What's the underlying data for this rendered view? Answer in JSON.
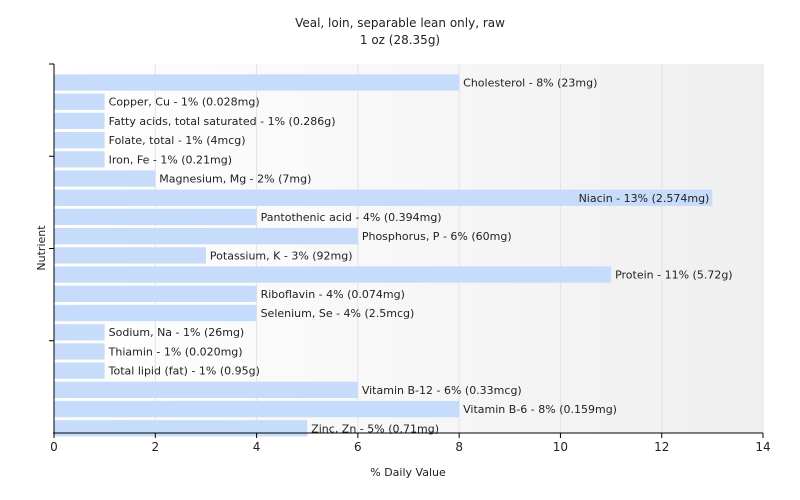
{
  "chart_data": {
    "type": "bar",
    "orientation": "horizontal",
    "title": "Veal, loin, separable lean only, raw",
    "subtitle": "1 oz (28.35g)",
    "xlabel": "% Daily Value",
    "ylabel": "Nutrient",
    "xlim": [
      0,
      14
    ],
    "xticks": [
      0,
      2,
      4,
      6,
      8,
      10,
      12,
      14
    ],
    "grid": true,
    "bar_color": "#c6dcfa",
    "categories": [
      "Cholesterol",
      "Copper, Cu",
      "Fatty acids, total saturated",
      "Folate, total",
      "Iron, Fe",
      "Magnesium, Mg",
      "Niacin",
      "Pantothenic acid",
      "Phosphorus, P",
      "Potassium, K",
      "Protein",
      "Riboflavin",
      "Selenium, Se",
      "Sodium, Na",
      "Thiamin",
      "Total lipid (fat)",
      "Vitamin B-12",
      "Vitamin B-6",
      "Zinc, Zn"
    ],
    "values": [
      8,
      1,
      1,
      1,
      1,
      2,
      13,
      4,
      6,
      3,
      11,
      4,
      4,
      1,
      1,
      1,
      6,
      8,
      5
    ],
    "labels": [
      "Cholesterol - 8% (23mg)",
      "Copper, Cu - 1% (0.028mg)",
      "Fatty acids, total saturated - 1% (0.286g)",
      "Folate, total - 1% (4mcg)",
      "Iron, Fe - 1% (0.21mg)",
      "Magnesium, Mg - 2% (7mg)",
      "Niacin - 13% (2.574mg)",
      "Pantothenic acid - 4% (0.394mg)",
      "Phosphorus, P - 6% (60mg)",
      "Potassium, K - 3% (92mg)",
      "Protein - 11% (5.72g)",
      "Riboflavin - 4% (0.074mg)",
      "Selenium, Se - 4% (2.5mcg)",
      "Sodium, Na - 1% (26mg)",
      "Thiamin - 1% (0.020mg)",
      "Total lipid (fat) - 1% (0.95g)",
      "Vitamin B-12 - 6% (0.33mcg)",
      "Vitamin B-6 - 8% (0.159mg)",
      "Zinc, Zn - 5% (0.71mg)"
    ]
  }
}
